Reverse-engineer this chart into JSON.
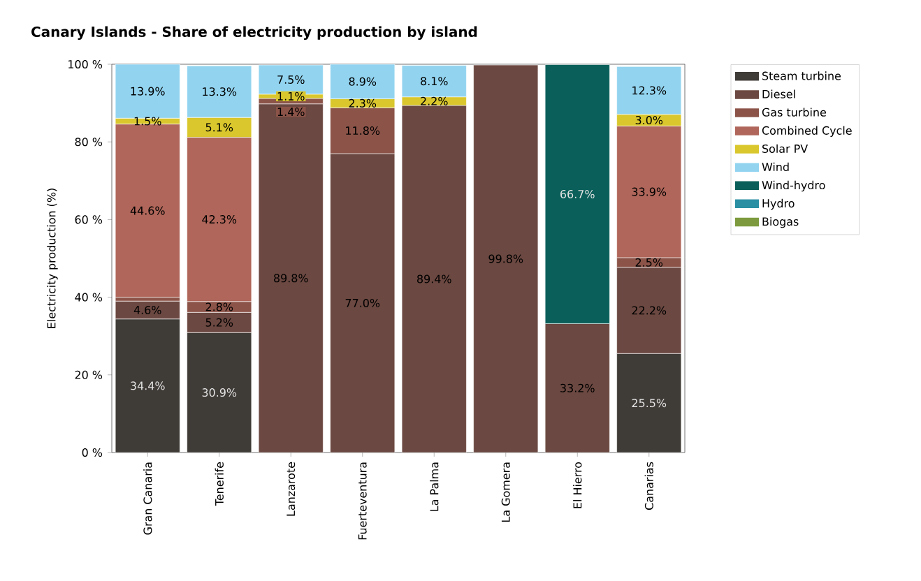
{
  "chart_data": {
    "type": "bar",
    "stacked": true,
    "title": "Canary Islands - Share of electricity production by island",
    "ylabel": "Electricity production (%)",
    "categories": [
      "Gran Canaria",
      "Tenerife",
      "Lanzarote",
      "Fuerteventura",
      "La Palma",
      "La Gomera",
      "El Hierro",
      "Canarias"
    ],
    "ylim": [
      0,
      100
    ],
    "yticks": [
      {
        "value": 0,
        "label": "0 %"
      },
      {
        "value": 20,
        "label": "20 %"
      },
      {
        "value": 40,
        "label": "40 %"
      },
      {
        "value": 60,
        "label": "60 %"
      },
      {
        "value": 80,
        "label": "80 %"
      },
      {
        "value": 100,
        "label": "100 %"
      }
    ],
    "legend": "right",
    "grid": false,
    "series": [
      {
        "name": "Steam turbine",
        "color": "#3f3b37",
        "values": [
          34.4,
          30.9,
          null,
          null,
          null,
          null,
          null,
          25.5
        ],
        "value_labels": [
          "34.4%",
          "30.9%",
          null,
          null,
          null,
          null,
          null,
          "25.5%"
        ]
      },
      {
        "name": "Diesel",
        "color": "#6b4841",
        "values": [
          4.6,
          5.2,
          89.8,
          77.0,
          89.4,
          99.8,
          33.2,
          22.2
        ],
        "value_labels": [
          "4.6%",
          "5.2%",
          "89.8%",
          "77.0%",
          "89.4%",
          "99.8%",
          "33.2%",
          "22.2%"
        ]
      },
      {
        "name": "Gas turbine",
        "color": "#8c5449",
        "values": [
          1.0,
          2.8,
          1.4,
          11.8,
          null,
          null,
          null,
          2.5
        ],
        "value_labels": [
          null,
          "2.8%",
          "1.4%",
          "11.8%",
          null,
          null,
          null,
          "2.5%"
        ]
      },
      {
        "name": "Combined Cycle",
        "color": "#b0665a",
        "values": [
          44.6,
          42.3,
          null,
          null,
          null,
          null,
          null,
          33.9
        ],
        "value_labels": [
          "44.6%",
          "42.3%",
          null,
          null,
          null,
          null,
          null,
          "33.9%"
        ]
      },
      {
        "name": "Solar PV",
        "color": "#d9c72d",
        "values": [
          1.5,
          5.1,
          1.1,
          2.3,
          2.2,
          null,
          null,
          3.0
        ],
        "value_labels": [
          "1.5%",
          "5.1%",
          "1.1%",
          "2.3%",
          "2.2%",
          null,
          null,
          "3.0%"
        ]
      },
      {
        "name": "Wind",
        "color": "#92d4f0",
        "values": [
          13.9,
          13.3,
          7.5,
          8.9,
          8.1,
          null,
          null,
          12.3
        ],
        "value_labels": [
          "13.9%",
          "13.3%",
          "7.5%",
          "8.9%",
          "8.1%",
          null,
          null,
          "12.3%"
        ]
      },
      {
        "name": "Wind-hydro",
        "color": "#0a5f5a",
        "values": [
          null,
          null,
          null,
          null,
          null,
          null,
          66.7,
          null
        ],
        "value_labels": [
          null,
          null,
          null,
          null,
          null,
          null,
          "66.7%",
          null
        ]
      },
      {
        "name": "Hydro",
        "color": "#2a8fa3",
        "values": [
          null,
          null,
          null,
          null,
          null,
          null,
          null,
          null
        ]
      },
      {
        "name": "Biogas",
        "color": "#7d9b3e",
        "values": [
          null,
          null,
          null,
          null,
          null,
          null,
          null,
          null
        ]
      }
    ]
  }
}
